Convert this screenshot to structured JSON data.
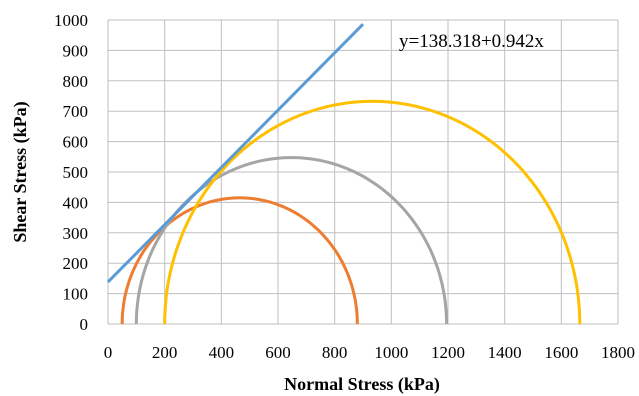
{
  "chart_data": {
    "type": "line",
    "xlabel": "Normal Stress (kPa)",
    "ylabel": "Shear Stress (kPa)",
    "xlim": [
      0,
      1800
    ],
    "ylim": [
      0,
      1000
    ],
    "xticks": [
      0,
      200,
      400,
      600,
      800,
      1000,
      1200,
      1400,
      1600,
      1800
    ],
    "yticks": [
      0,
      100,
      200,
      300,
      400,
      500,
      600,
      700,
      800,
      900,
      1000
    ],
    "grid": true,
    "annotation": "y=138.318+0.942x",
    "envelope": {
      "intercept": 138.318,
      "slope": 0.942,
      "x_range": [
        0,
        900
      ],
      "color": "#5B9BD5"
    },
    "circles": [
      {
        "sigma3": 50,
        "sigma1": 880,
        "color": "#ED7D31"
      },
      {
        "sigma3": 100,
        "sigma1": 1195,
        "color": "#A5A5A5"
      },
      {
        "sigma3": 200,
        "sigma1": 1665,
        "color": "#FFC000"
      }
    ]
  }
}
